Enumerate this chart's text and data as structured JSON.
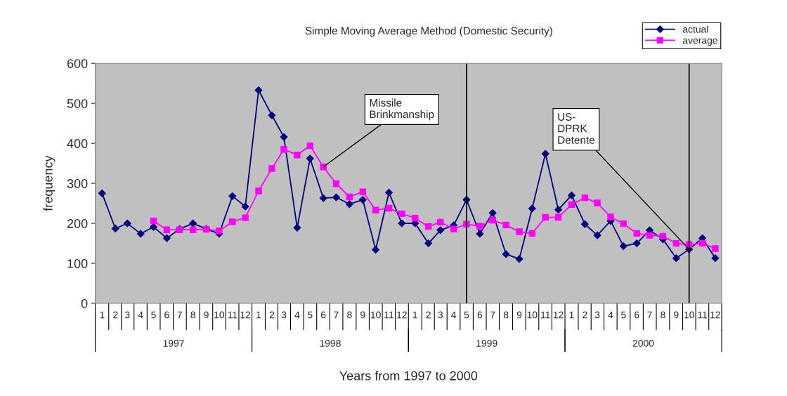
{
  "chart_data": {
    "type": "line",
    "title": "Simple Moving Average Method (Domestic Security)",
    "xlabel": "Years from 1997 to 2000",
    "ylabel": "frequency",
    "x": [
      "1997-01",
      "1997-02",
      "1997-03",
      "1997-04",
      "1997-05",
      "1997-06",
      "1997-07",
      "1997-08",
      "1997-09",
      "1997-10",
      "1997-11",
      "1997-12",
      "1998-01",
      "1998-02",
      "1998-03",
      "1998-04",
      "1998-05",
      "1998-06",
      "1998-07",
      "1998-08",
      "1998-09",
      "1998-10",
      "1998-11",
      "1998-12",
      "1999-01",
      "1999-02",
      "1999-03",
      "1999-04",
      "1999-05",
      "1999-06",
      "1999-07",
      "1999-08",
      "1999-09",
      "1999-10",
      "1999-11",
      "1999-12",
      "2000-01",
      "2000-02",
      "2000-03",
      "2000-04",
      "2000-05",
      "2000-06",
      "2000-07",
      "2000-08",
      "2000-09",
      "2000-10",
      "2000-11",
      "2000-12"
    ],
    "series": [
      {
        "name": "actual",
        "color": "#000080",
        "marker": "diamond",
        "values": [
          275,
          187,
          200,
          174,
          191,
          163,
          186,
          200,
          186,
          174,
          268,
          242,
          533,
          470,
          416,
          189,
          362,
          263,
          265,
          248,
          259,
          134,
          277,
          200,
          200,
          150,
          183,
          195,
          259,
          174,
          226,
          123,
          111,
          237,
          374,
          234,
          270,
          198,
          170,
          206,
          143,
          150,
          183,
          160,
          113,
          135,
          163,
          113
        ]
      },
      {
        "name": "average",
        "color": "#ff00ff",
        "marker": "square",
        "values": [
          null,
          null,
          null,
          null,
          206,
          184,
          184,
          184,
          185,
          181,
          204,
          214,
          281,
          337,
          385,
          371,
          394,
          341,
          299,
          266,
          279,
          233,
          238,
          224,
          213,
          192,
          203,
          186,
          198,
          193,
          208,
          196,
          179,
          175,
          215,
          215,
          247,
          264,
          251,
          216,
          199,
          175,
          170,
          168,
          150,
          147,
          150,
          137
        ]
      }
    ],
    "annotations": [
      {
        "text": "Missile\nBrinkmanship",
        "x": "1998-06",
        "y": 341
      },
      {
        "text": "US-\nDPRK\nDetente",
        "x": "2000-10",
        "y": 135
      },
      "1997",
      "1998",
      "1999",
      "2000"
    ],
    "ref_lines": [
      {
        "axis": "x",
        "value": "1999-05",
        "color": "#000000"
      },
      {
        "axis": "x",
        "value": "2000-10",
        "color": "#000000"
      }
    ],
    "xlim": [
      "1996-12-16",
      "2000-12-16"
    ],
    "xticks": [
      {
        "value": "1997-01",
        "label": "1"
      },
      {
        "value": "1997-02",
        "label": "2"
      },
      {
        "value": "1997-03",
        "label": "3"
      },
      {
        "value": "1997-04",
        "label": "4"
      },
      {
        "value": "1997-05",
        "label": "5"
      },
      {
        "value": "1997-06",
        "label": "6"
      },
      {
        "value": "1997-07",
        "label": "7"
      },
      {
        "value": "1997-08",
        "label": "8"
      },
      {
        "value": "1997-09",
        "label": "9"
      },
      {
        "value": "1997-10",
        "label": "10"
      },
      {
        "value": "1997-11",
        "label": "11"
      },
      {
        "value": "1997-12",
        "label": "12"
      },
      {
        "value": "1998-01",
        "label": "1"
      },
      {
        "value": "1998-02",
        "label": "2"
      },
      {
        "value": "1998-03",
        "label": "3"
      },
      {
        "value": "1998-04",
        "label": "4"
      },
      {
        "value": "1998-05",
        "label": "5"
      },
      {
        "value": "1998-06",
        "label": "6"
      },
      {
        "value": "1998-07",
        "label": "7"
      },
      {
        "value": "1998-08",
        "label": "8"
      },
      {
        "value": "1998-09",
        "label": "9"
      },
      {
        "value": "1998-10",
        "label": "10"
      },
      {
        "value": "1998-11",
        "label": "11"
      },
      {
        "value": "1998-12",
        "label": "12"
      },
      {
        "value": "1999-01",
        "label": "1"
      },
      {
        "value": "1999-02",
        "label": "2"
      },
      {
        "value": "1999-03",
        "label": "3"
      },
      {
        "value": "1999-04",
        "label": "4"
      },
      {
        "value": "1999-05",
        "label": "5"
      },
      {
        "value": "1999-06",
        "label": "6"
      },
      {
        "value": "1999-07",
        "label": "7"
      },
      {
        "value": "1999-08",
        "label": "8"
      },
      {
        "value": "1999-09",
        "label": "9"
      },
      {
        "value": "1999-10",
        "label": "10"
      },
      {
        "value": "1999-11",
        "label": "11"
      },
      {
        "value": "1999-12",
        "label": "12"
      },
      {
        "value": "2000-01",
        "label": "1"
      },
      {
        "value": "2000-02",
        "label": "2"
      },
      {
        "value": "2000-03",
        "label": "3"
      },
      {
        "value": "2000-04",
        "label": "4"
      },
      {
        "value": "2000-05",
        "label": "5"
      },
      {
        "value": "2000-06",
        "label": "6"
      },
      {
        "value": "2000-07",
        "label": "7"
      },
      {
        "value": "2000-08",
        "label": "8"
      },
      {
        "value": "2000-09",
        "label": "9"
      },
      {
        "value": "2000-10",
        "label": "10"
      },
      {
        "value": "2000-11",
        "label": "11"
      },
      {
        "value": "2000-12",
        "label": "12"
      }
    ],
    "ylim": [
      0,
      600
    ],
    "yticks": [
      0,
      100,
      200,
      300,
      400,
      500,
      600
    ],
    "grid": false,
    "legend": "top right"
  }
}
